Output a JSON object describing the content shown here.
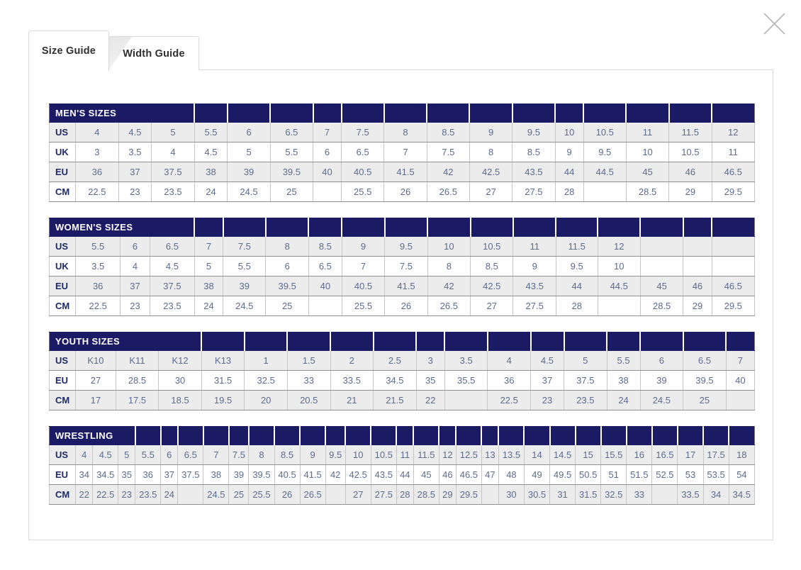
{
  "close": {
    "icon": "close-x"
  },
  "modal": {
    "tabs": [
      {
        "label": "Size Guide",
        "active": true
      },
      {
        "label": "Width Guide",
        "active": false
      }
    ]
  },
  "colors": {
    "header_bg": "#1b1a64",
    "label_text": "#1e2a66",
    "value_text": "#5c6b8e",
    "row_alt_bg": "#ececec",
    "border_dark": "#8f8f8f",
    "border_light": "#c6c6c6",
    "tab_border": "#d9d9d9",
    "close_icon": "#b5b5b5"
  },
  "tables": [
    {
      "title": "MEN'S SIZES",
      "title_colspan": 4,
      "rows": [
        {
          "label": "US",
          "values": [
            "4",
            "4.5",
            "5",
            "5.5",
            "6",
            "6.5",
            "7",
            "7.5",
            "8",
            "8.5",
            "9",
            "9.5",
            "10",
            "10.5",
            "11",
            "11.5",
            "12"
          ]
        },
        {
          "label": "UK",
          "values": [
            "3",
            "3.5",
            "4",
            "4.5",
            "5",
            "5.5",
            "6",
            "6.5",
            "7",
            "7.5",
            "8",
            "8.5",
            "9",
            "9.5",
            "10",
            "10.5",
            "11"
          ]
        },
        {
          "label": "EU",
          "values": [
            "36",
            "37",
            "37.5",
            "38",
            "39",
            "39.5",
            "40",
            "40.5",
            "41.5",
            "42",
            "42.5",
            "43.5",
            "44",
            "44.5",
            "45",
            "46",
            "46.5"
          ]
        },
        {
          "label": "CM",
          "values": [
            "22.5",
            "23",
            "23.5",
            "24",
            "24.5",
            "25",
            "",
            "25.5",
            "26",
            "26.5",
            "27",
            "27.5",
            "28",
            "",
            "28.5",
            "29",
            "29.5"
          ]
        }
      ]
    },
    {
      "title": "WOMEN'S SIZES",
      "title_colspan": 4,
      "rows": [
        {
          "label": "US",
          "values": [
            "5.5",
            "6",
            "6.5",
            "7",
            "7.5",
            "8",
            "8.5",
            "9",
            "9.5",
            "10",
            "10.5",
            "11",
            "11.5",
            "12",
            "",
            "",
            ""
          ]
        },
        {
          "label": "UK",
          "values": [
            "3.5",
            "4",
            "4.5",
            "5",
            "5.5",
            "6",
            "6.5",
            "7",
            "7.5",
            "8",
            "8.5",
            "9",
            "9.5",
            "10",
            "",
            "",
            ""
          ]
        },
        {
          "label": "EU",
          "values": [
            "36",
            "37",
            "37.5",
            "38",
            "39",
            "39.5",
            "40",
            "40.5",
            "41.5",
            "42",
            "42.5",
            "43.5",
            "44",
            "44.5",
            "45",
            "46",
            "46.5"
          ]
        },
        {
          "label": "CM",
          "values": [
            "22.5",
            "23",
            "23.5",
            "24",
            "24.5",
            "25",
            "",
            "25.5",
            "26",
            "26.5",
            "27",
            "27.5",
            "28",
            "",
            "28.5",
            "29",
            "29.5"
          ]
        }
      ]
    },
    {
      "title": "YOUTH SIZES",
      "title_colspan": 4,
      "rows": [
        {
          "label": "US",
          "values": [
            "K10",
            "K11",
            "K12",
            "K13",
            "1",
            "1.5",
            "2",
            "2.5",
            "3",
            "3.5",
            "4",
            "4.5",
            "5",
            "5.5",
            "6",
            "6.5",
            "7"
          ]
        },
        {
          "label": "EU",
          "values": [
            "27",
            "28.5",
            "30",
            "31.5",
            "32.5",
            "33",
            "33.5",
            "34.5",
            "35",
            "35.5",
            "36",
            "37",
            "37.5",
            "38",
            "39",
            "39.5",
            "40"
          ]
        },
        {
          "label": "CM",
          "values": [
            "17",
            "17.5",
            "18.5",
            "19.5",
            "20",
            "20.5",
            "21",
            "21.5",
            "22",
            "",
            "22.5",
            "23",
            "23.5",
            "24",
            "24.5",
            "25",
            ""
          ]
        }
      ]
    },
    {
      "title": "WRESTLING",
      "title_colspan": 4,
      "rows": [
        {
          "label": "US",
          "values": [
            "4",
            "4.5",
            "5",
            "5.5",
            "6",
            "6.5",
            "7",
            "7.5",
            "8",
            "8.5",
            "9",
            "9.5",
            "10",
            "10.5",
            "11",
            "11.5",
            "12",
            "12.5",
            "13",
            "13.5",
            "14",
            "14.5",
            "15",
            "15.5",
            "16",
            "16.5",
            "17",
            "17.5",
            "18"
          ]
        },
        {
          "label": "EU",
          "values": [
            "34",
            "34.5",
            "35",
            "36",
            "37",
            "37.5",
            "38",
            "39",
            "39.5",
            "40.5",
            "41.5",
            "42",
            "42.5",
            "43.5",
            "44",
            "45",
            "46",
            "46.5",
            "47",
            "48",
            "49",
            "49.5",
            "50.5",
            "51",
            "51.5",
            "52.5",
            "53",
            "53.5",
            "54"
          ]
        },
        {
          "label": "CM",
          "values": [
            "22",
            "22.5",
            "23",
            "23.5",
            "24",
            "",
            "24.5",
            "25",
            "25.5",
            "26",
            "26.5",
            "",
            "27",
            "27.5",
            "28",
            "28.5",
            "29",
            "29.5",
            "",
            "30",
            "30.5",
            "31",
            "31.5",
            "32.5",
            "33",
            "",
            "33.5",
            "34",
            "34.5"
          ]
        }
      ]
    }
  ]
}
